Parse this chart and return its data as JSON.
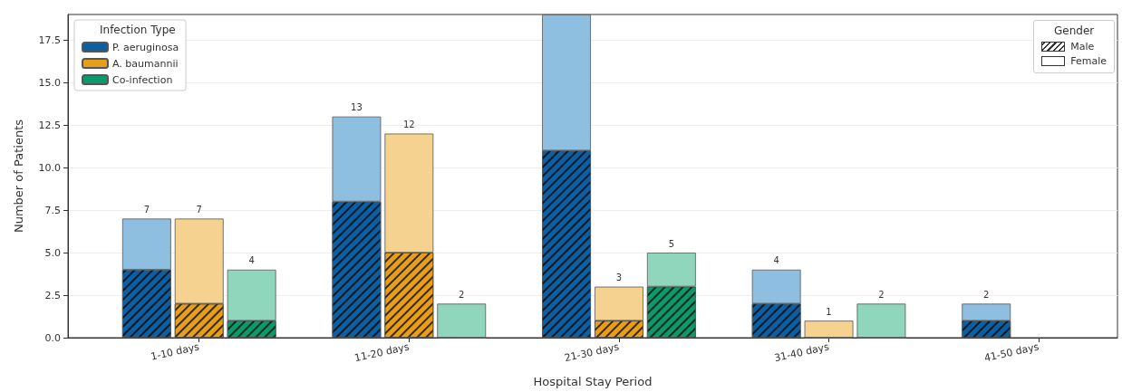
{
  "chart_data": {
    "type": "bar",
    "stacked": true,
    "xlabel": "Hospital Stay Period",
    "ylabel": "Number of Patients",
    "legend_title": "Infection Type",
    "legend": "top left",
    "categories": [
      null,
      null,
      "1-10 days",
      null,
      null,
      null,
      "11-20 days",
      null,
      null,
      null,
      "21-30 days",
      null,
      null,
      null,
      "31-40 days",
      null,
      null,
      null,
      "41-50 days",
      null
    ],
    "series": [
      {
        "name": "P. aeruginosa",
        "color": "#0d5fa0",
        "values": [
          null,
          4,
          null,
          null,
          null,
          8,
          null,
          null,
          null,
          11,
          null,
          null,
          null,
          2,
          null,
          null,
          null,
          1,
          null,
          null
        ]
      },
      {
        "color": "#8fbfe0",
        "values": [
          null,
          3,
          null,
          null,
          null,
          5,
          null,
          null,
          null,
          8,
          null,
          null,
          null,
          2,
          null,
          null,
          null,
          1,
          null,
          null
        ]
      },
      {
        "name": "A. baumannii",
        "color": "#e69f1a",
        "values": [
          null,
          null,
          2,
          null,
          null,
          null,
          5,
          null,
          null,
          null,
          1,
          null,
          null,
          null,
          0,
          null,
          null,
          null,
          null,
          null
        ]
      },
      {
        "color": "#f5d28f",
        "values": [
          null,
          null,
          5,
          null,
          null,
          null,
          7,
          null,
          null,
          null,
          2,
          null,
          null,
          null,
          1,
          null,
          null,
          null,
          null,
          null
        ]
      },
      {
        "name": "Co-infection",
        "color": "#0a9a6c",
        "values": [
          null,
          null,
          null,
          1,
          null,
          null,
          null,
          0,
          null,
          null,
          null,
          3,
          null,
          null,
          null,
          0,
          null,
          null,
          null,
          null
        ]
      },
      {
        "color": "#8fd6bd",
        "values": [
          null,
          null,
          null,
          3,
          null,
          null,
          null,
          2,
          null,
          null,
          null,
          2,
          null,
          null,
          null,
          2,
          null,
          null,
          null,
          null
        ]
      }
    ],
    "totals": [
      null,
      "7",
      "7",
      "4",
      null,
      "13",
      "12",
      "2",
      null,
      null,
      "3",
      "5",
      null,
      "4",
      "1",
      "2",
      null,
      "2",
      null,
      null
    ],
    "annotations": [
      "Gender",
      "Male",
      "Female"
    ],
    "ylim": [
      0,
      19
    ],
    "yticks": [
      {
        "value": 0,
        "label": "0.0"
      },
      2.5,
      {
        "value": 5,
        "label": "5.0"
      },
      7.5,
      {
        "value": 10,
        "label": "10.0"
      },
      12.5,
      {
        "value": 15,
        "label": "15.0"
      },
      17.5
    ],
    "grid": "y"
  }
}
